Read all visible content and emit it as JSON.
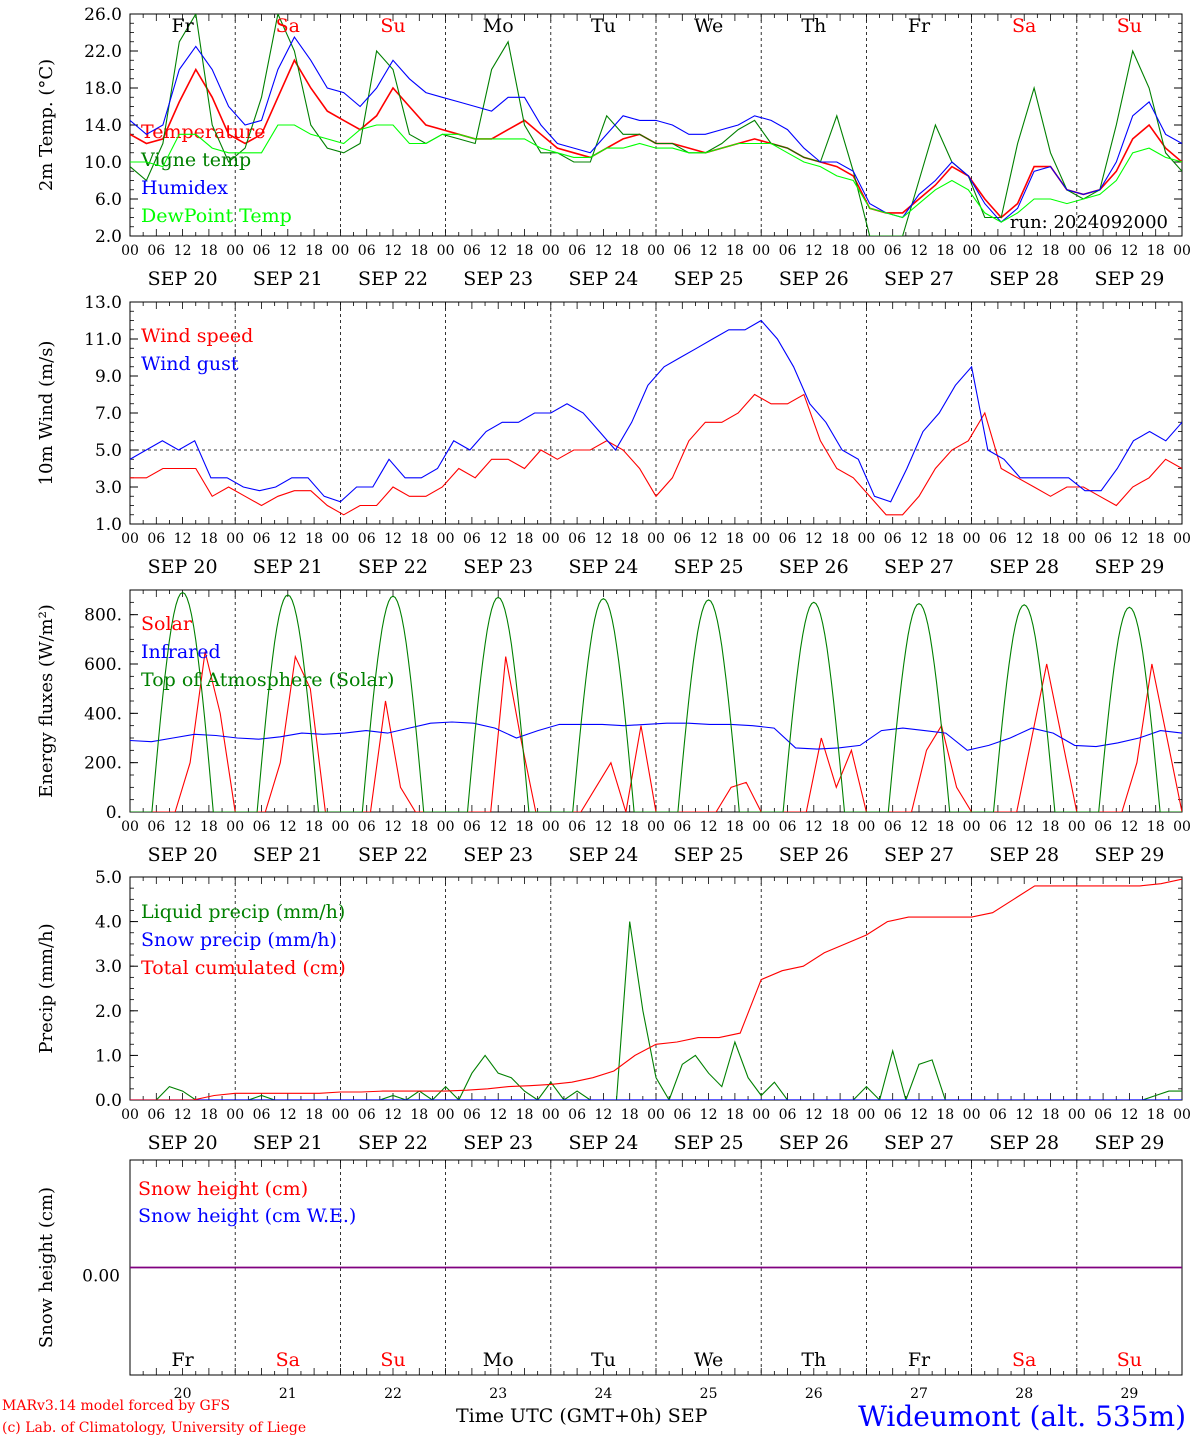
{
  "day_abbrevs": [
    "Fr",
    "Sa",
    "Su",
    "Mo",
    "Tu",
    "We",
    "Th",
    "Fr",
    "Sa",
    "Su"
  ],
  "weekend_flags": [
    false,
    true,
    true,
    false,
    false,
    false,
    false,
    false,
    true,
    true
  ],
  "date_labels": [
    "SEP 20",
    "SEP 21",
    "SEP 22",
    "SEP 23",
    "SEP 24",
    "SEP 25",
    "SEP 26",
    "SEP 27",
    "SEP 28",
    "SEP 29"
  ],
  "hour_ticks": [
    "00",
    "06",
    "12",
    "18"
  ],
  "hour_final": "00",
  "day_numbers": [
    "20",
    "21",
    "22",
    "23",
    "24",
    "25",
    "26",
    "27",
    "28",
    "29"
  ],
  "month": "SEP",
  "colors": {
    "red": "#ff0000",
    "green": "#008000",
    "blue": "#0000ff",
    "lime": "#00ff00",
    "purple": "#800080"
  },
  "footer": {
    "credit_line1": "MARv3.14 model forced by GFS",
    "credit_line2": "(c) Lab. of Climatology, University of Liege",
    "xtitle": "Time UTC (GMT+0h)",
    "station": "Wideumont (alt. 535m)"
  },
  "chart_data": [
    {
      "type": "line",
      "ylabel": "2m Temp. (°C)",
      "ylim": [
        2.0,
        26.0
      ],
      "yticks": [
        "2.0",
        "6.0",
        "10.0",
        "14.0",
        "18.0",
        "22.0",
        "26.0"
      ],
      "annotation": "run: 2024092000",
      "series": [
        {
          "name": "Temperature",
          "color": "#ff0000",
          "values": [
            13,
            12,
            12.5,
            16.5,
            20,
            17,
            13,
            12,
            13,
            17,
            21,
            18,
            15.5,
            14.5,
            13.5,
            15,
            18,
            16,
            14,
            13.5,
            13,
            12.5,
            12.5,
            13.5,
            14.5,
            13,
            11.5,
            11,
            10.5,
            11.5,
            12.5,
            13,
            12,
            12,
            11.5,
            11,
            11.5,
            12,
            12.5,
            12,
            11.5,
            10.5,
            10,
            9.5,
            8.5,
            5,
            4.5,
            4.5,
            6,
            7.5,
            9.5,
            8.5,
            6,
            4,
            5.5,
            9.5,
            9.5,
            7,
            6.5,
            7,
            9,
            12.5,
            14,
            11.5,
            10
          ]
        },
        {
          "name": "Vigne temp",
          "color": "#008000",
          "values": [
            9.5,
            8,
            12,
            23,
            26,
            14,
            10,
            11.5,
            17,
            26,
            22,
            14,
            11.5,
            11,
            12,
            22,
            20,
            13,
            12,
            13,
            12.5,
            12,
            20,
            23,
            14,
            11,
            11,
            10,
            10,
            15,
            13,
            13,
            12,
            12,
            11,
            11,
            12,
            13.5,
            14.5,
            12,
            11.5,
            10.5,
            10,
            15,
            9,
            2,
            2,
            2,
            8,
            14,
            10,
            8.5,
            4,
            4,
            12,
            18,
            11,
            7,
            6,
            7,
            14,
            22,
            18,
            11,
            9
          ]
        },
        {
          "name": "Humidex",
          "color": "#0000ff",
          "values": [
            14.5,
            13,
            14,
            20,
            22.5,
            20,
            16,
            14,
            14.5,
            20,
            23.5,
            21,
            18,
            17.5,
            16,
            18,
            21,
            19,
            17.5,
            17,
            16.5,
            16,
            15.5,
            17,
            17,
            14,
            12,
            11.5,
            11,
            13,
            15,
            14.5,
            14.5,
            14,
            13,
            13,
            13.5,
            14,
            15,
            14.5,
            13.5,
            11.5,
            10,
            10,
            9,
            5.5,
            4.5,
            4,
            6.5,
            8,
            10,
            8.5,
            5.5,
            3.5,
            5,
            9,
            9.5,
            7,
            6.5,
            7,
            10,
            15,
            16.5,
            13,
            12
          ]
        },
        {
          "name": "DewPoint Temp",
          "color": "#00ff00",
          "values": [
            10,
            10,
            9.5,
            13,
            13,
            11.5,
            11,
            11,
            11,
            14,
            14,
            13,
            12.5,
            12,
            13.5,
            14,
            14,
            12,
            12,
            13,
            13,
            12.5,
            12.5,
            12.5,
            12.5,
            11.5,
            11,
            10.5,
            10.5,
            11.5,
            11.5,
            12,
            11.5,
            11.5,
            11,
            11,
            11.5,
            12,
            12,
            12,
            11,
            10,
            9.5,
            8.5,
            8,
            5,
            4.5,
            4,
            5.5,
            7,
            8,
            7,
            4.5,
            3.5,
            4.5,
            6,
            6,
            5.5,
            6,
            6.5,
            8,
            11,
            11.5,
            10.5,
            10
          ]
        }
      ]
    },
    {
      "type": "line",
      "ylabel": "10m Wind (m/s)",
      "ylim": [
        1.0,
        13.0
      ],
      "yticks": [
        "1.0",
        "3.0",
        "5.0",
        "7.0",
        "9.0",
        "11.0",
        "13.0"
      ],
      "reference_line": 5,
      "series": [
        {
          "name": "Wind speed",
          "color": "#ff0000",
          "values": [
            3.5,
            3.5,
            4,
            4,
            4,
            2.5,
            3,
            2.5,
            2,
            2.5,
            2.8,
            2.8,
            2,
            1.5,
            2,
            2,
            3,
            2.5,
            2.5,
            3,
            4,
            3.5,
            4.5,
            4.5,
            4,
            5,
            4.5,
            5,
            5,
            5.5,
            5,
            4,
            2.5,
            3.5,
            5.5,
            6.5,
            6.5,
            7,
            8,
            7.5,
            7.5,
            8,
            5.5,
            4,
            3.5,
            2.5,
            1.5,
            1.5,
            2.5,
            4,
            5,
            5.5,
            7,
            4,
            3.5,
            3,
            2.5,
            3,
            3,
            2.5,
            2,
            3,
            3.5,
            4.5,
            4
          ]
        },
        {
          "name": "Wind gust",
          "color": "#0000ff",
          "values": [
            4.5,
            5,
            5.5,
            5,
            5.5,
            3.5,
            3.5,
            3,
            2.8,
            3,
            3.5,
            3.5,
            2.5,
            2.2,
            3,
            3,
            4.5,
            3.5,
            3.5,
            4,
            5.5,
            5,
            6,
            6.5,
            6.5,
            7,
            7,
            7.5,
            7,
            6,
            5,
            6.5,
            8.5,
            9.5,
            10,
            10.5,
            11,
            11.5,
            11.5,
            12,
            11,
            9.5,
            7.5,
            6.5,
            5,
            4.5,
            2.5,
            2.2,
            4,
            6,
            7,
            8.5,
            9.5,
            5,
            4.5,
            3.5,
            3.5,
            3.5,
            3.5,
            2.8,
            2.8,
            4,
            5.5,
            6,
            5.5,
            6.5
          ]
        }
      ]
    },
    {
      "type": "line",
      "ylabel": "Energy fluxes (W/m²)",
      "ylim": [
        0,
        900
      ],
      "yticks": [
        "0.",
        "200.",
        "400.",
        "600.",
        "800."
      ],
      "series": [
        {
          "name": "Solar",
          "color": "#ff0000",
          "values": [
            0,
            0,
            0,
            0,
            200,
            650,
            400,
            0,
            0,
            0,
            200,
            630,
            500,
            0,
            0,
            0,
            0,
            450,
            100,
            0,
            0,
            0,
            0,
            0,
            0,
            630,
            300,
            0,
            0,
            0,
            0,
            100,
            200,
            0,
            350,
            0,
            0,
            0,
            0,
            0,
            100,
            120,
            0,
            0,
            0,
            0,
            300,
            100,
            250,
            0,
            0,
            0,
            0,
            250,
            350,
            100,
            0,
            0,
            0,
            0,
            300,
            600,
            300,
            0,
            0,
            0,
            0,
            200,
            600,
            300,
            0
          ]
        },
        {
          "name": "Infrared",
          "color": "#0000ff",
          "values": [
            290,
            285,
            300,
            315,
            310,
            300,
            295,
            305,
            320,
            315,
            320,
            330,
            320,
            340,
            360,
            365,
            360,
            340,
            300,
            330,
            355,
            355,
            355,
            350,
            355,
            360,
            360,
            355,
            355,
            350,
            340,
            260,
            255,
            260,
            270,
            330,
            340,
            330,
            320,
            250,
            270,
            300,
            340,
            320,
            270,
            265,
            280,
            300,
            330,
            320
          ]
        },
        {
          "name": "Top of Atmosphere (Solar)",
          "color": "#008000",
          "daily_peaks": [
            890,
            880,
            875,
            870,
            865,
            860,
            850,
            845,
            840,
            830
          ]
        }
      ]
    },
    {
      "type": "line",
      "ylabel": "Precip (mm/h)",
      "ylim": [
        0,
        5.0
      ],
      "yticks": [
        "0.0",
        "1.0",
        "2.0",
        "3.0",
        "4.0",
        "5.0"
      ],
      "series": [
        {
          "name": "Liquid precip (mm/h)",
          "color": "#008000",
          "values": [
            0,
            0,
            0,
            0.3,
            0.2,
            0,
            0,
            0,
            0,
            0,
            0.1,
            0,
            0,
            0,
            0,
            0,
            0,
            0,
            0,
            0,
            0.1,
            0,
            0.2,
            0,
            0.3,
            0,
            0.6,
            1.0,
            0.6,
            0.5,
            0.2,
            0,
            0.4,
            0,
            0.2,
            0,
            0,
            0,
            4.0,
            2.0,
            0.5,
            0,
            0.8,
            1.0,
            0.6,
            0.3,
            1.3,
            0.5,
            0.1,
            0.4,
            0,
            0,
            0,
            0,
            0,
            0,
            0.3,
            0,
            1.1,
            0,
            0.8,
            0.9,
            0,
            0,
            0,
            0,
            0,
            0,
            0,
            0,
            0,
            0,
            0,
            0,
            0,
            0,
            0,
            0,
            0.1,
            0.2,
            0.2
          ]
        },
        {
          "name": "Snow precip (mm/h)",
          "color": "#0000ff",
          "values": [
            0,
            0,
            0,
            0,
            0,
            0,
            0,
            0,
            0,
            0,
            0
          ]
        },
        {
          "name": "Total cumulated (cm)",
          "color": "#ff0000",
          "values": [
            0,
            0,
            0,
            0,
            0.1,
            0.15,
            0.15,
            0.15,
            0.15,
            0.15,
            0.18,
            0.18,
            0.2,
            0.2,
            0.2,
            0.2,
            0.22,
            0.25,
            0.3,
            0.32,
            0.35,
            0.4,
            0.5,
            0.65,
            1.0,
            1.25,
            1.3,
            1.4,
            1.4,
            1.5,
            2.7,
            2.9,
            3.0,
            3.3,
            3.5,
            3.7,
            4.0,
            4.1,
            4.1,
            4.1,
            4.1,
            4.2,
            4.5,
            4.8,
            4.8,
            4.8,
            4.8,
            4.8,
            4.8,
            4.85,
            4.95
          ]
        }
      ]
    },
    {
      "type": "line",
      "ylabel": "Snow height (cm)",
      "ylim": [
        -1,
        1
      ],
      "yticks": [
        "0.00"
      ],
      "series": [
        {
          "name": "Snow height (cm)",
          "color": "#ff0000",
          "values": [
            0,
            0
          ]
        },
        {
          "name": "Snow height (cm W.E.)",
          "color": "#0000ff",
          "values": [
            0,
            0
          ]
        }
      ]
    }
  ]
}
